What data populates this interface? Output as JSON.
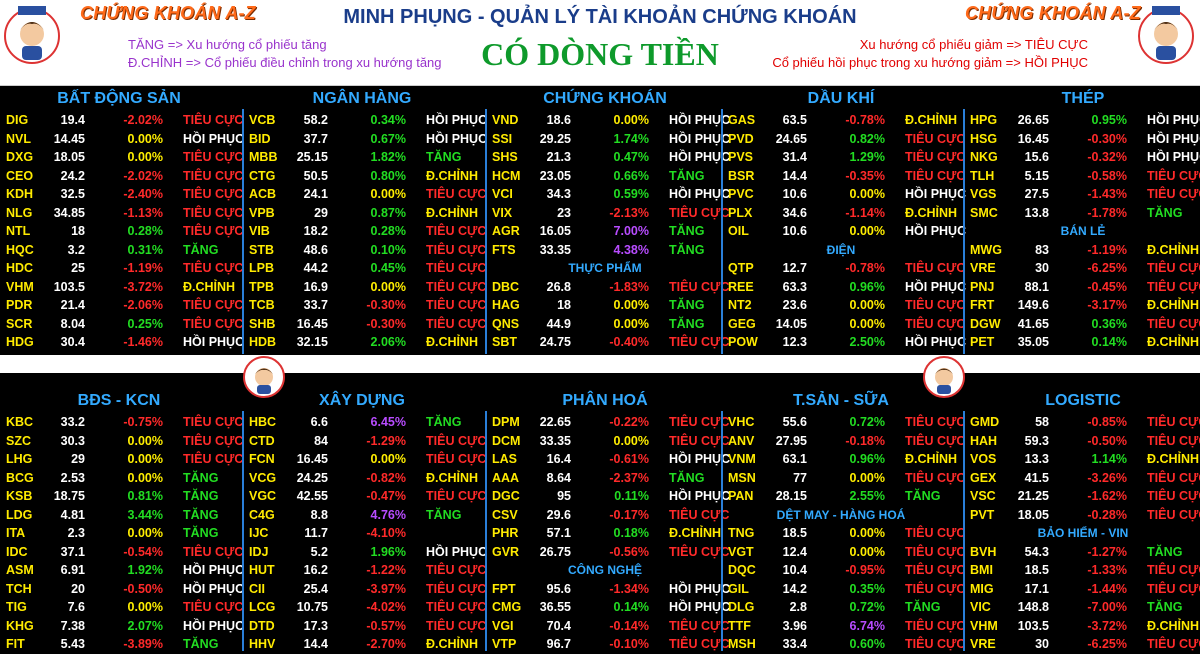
{
  "header": {
    "zone_left": "CHỨNG KHOÁN A-Z",
    "zone_right": "CHỨNG KHOÁN A-Z",
    "main_title": "MINH PHỤNG - QUẢN LÝ TÀI KHOẢN CHỨNG KHOÁN",
    "center_title": "CÓ DÒNG TIỀN",
    "legend_left": [
      "TĂNG => Xu hướng cổ phiếu tăng",
      "Đ.CHỈNH => Cổ phiếu điều chỉnh trong xu hướng tăng"
    ],
    "legend_right": [
      "Xu hướng cổ phiếu giảm => TIÊU CỰC",
      "Cổ phiếu hồi phục trong xu hướng giảm => HỒI PHỤC"
    ],
    "logo_text": "ZONE A-Z"
  },
  "colors": {
    "title_blue": "#1a3d8a",
    "center_green": "#0e9a2b",
    "section_blue": "#33aaff",
    "ticker_yellow": "#ffeb00",
    "up_green": "#22dd22",
    "down_red": "#ff2a2a",
    "purple": "#b84cff",
    "zone_orange": "#ff6a1a"
  },
  "sections": [
    {
      "title": "BẤT ĐỘNG SẢN",
      "rows": [
        [
          "DIG",
          "19.4",
          "-2.02%",
          "TIÊU CỰC"
        ],
        [
          "NVL",
          "14.45",
          "0.00%",
          "HỒI PHỤC"
        ],
        [
          "DXG",
          "18.05",
          "0.00%",
          "TIÊU CỰC"
        ],
        [
          "CEO",
          "24.2",
          "-2.02%",
          "TIÊU CỰC"
        ],
        [
          "KDH",
          "32.5",
          "-2.40%",
          "TIÊU CỰC"
        ],
        [
          "NLG",
          "34.85",
          "-1.13%",
          "TIÊU CỰC"
        ],
        [
          "NTL",
          "18",
          "0.28%",
          "TIÊU CỰC"
        ],
        [
          "HQC",
          "3.2",
          "0.31%",
          "TĂNG"
        ],
        [
          "HDC",
          "25",
          "-1.19%",
          "TIÊU CỰC"
        ],
        [
          "VHM",
          "103.5",
          "-3.72%",
          "Đ.CHỈNH"
        ],
        [
          "PDR",
          "21.4",
          "-2.06%",
          "TIÊU CỰC"
        ],
        [
          "SCR",
          "8.04",
          "0.25%",
          "TIÊU CỰC"
        ],
        [
          "HDG",
          "30.4",
          "-1.46%",
          "HỒI PHỤC"
        ]
      ]
    },
    {
      "title": "NGÂN HÀNG",
      "rows": [
        [
          "VCB",
          "58.2",
          "0.34%",
          "HỒI PHỤC"
        ],
        [
          "BID",
          "37.7",
          "0.67%",
          "HỒI PHỤC"
        ],
        [
          "MBB",
          "25.15",
          "1.82%",
          "TĂNG"
        ],
        [
          "CTG",
          "50.5",
          "0.80%",
          "Đ.CHỈNH"
        ],
        [
          "ACB",
          "24.1",
          "0.00%",
          "TIÊU CỰC"
        ],
        [
          "VPB",
          "29",
          "0.87%",
          "Đ.CHỈNH"
        ],
        [
          "VIB",
          "18.2",
          "0.28%",
          "TIÊU CỰC"
        ],
        [
          "STB",
          "48.6",
          "0.10%",
          "TIÊU CỰC"
        ],
        [
          "LPB",
          "44.2",
          "0.45%",
          "TIÊU CỰC"
        ],
        [
          "TPB",
          "16.9",
          "0.00%",
          "TIÊU CỰC"
        ],
        [
          "TCB",
          "33.7",
          "-0.30%",
          "TIÊU CỰC"
        ],
        [
          "SHB",
          "16.45",
          "-0.30%",
          "TIÊU CỰC"
        ],
        [
          "HDB",
          "32.15",
          "2.06%",
          "Đ.CHỈNH"
        ]
      ]
    },
    {
      "title": "CHỨNG KHOÁN",
      "rows": [
        [
          "VND",
          "18.6",
          "0.00%",
          "HỒI PHỤC"
        ],
        [
          "SSI",
          "29.25",
          "1.74%",
          "HỒI PHỤC"
        ],
        [
          "SHS",
          "21.3",
          "0.47%",
          "HỒI PHỤC"
        ],
        [
          "HCM",
          "23.05",
          "0.66%",
          "TĂNG"
        ],
        [
          "VCI",
          "34.3",
          "0.59%",
          "HỒI PHỤC"
        ],
        [
          "VIX",
          "23",
          "-2.13%",
          "TIÊU CỰC"
        ],
        [
          "AGR",
          "16.05",
          "7.00%",
          "TĂNG"
        ],
        [
          "FTS",
          "33.35",
          "4.38%",
          "TĂNG"
        ]
      ],
      "sub": {
        "title": "THỰC PHẨM",
        "rows": [
          [
            "DBC",
            "26.8",
            "-1.83%",
            "TIÊU CỰC"
          ],
          [
            "HAG",
            "18",
            "0.00%",
            "TĂNG"
          ],
          [
            "QNS",
            "44.9",
            "0.00%",
            "TĂNG"
          ],
          [
            "SBT",
            "24.75",
            "-0.40%",
            "TIÊU CỰC"
          ]
        ]
      }
    },
    {
      "title": "DẦU KHÍ",
      "rows": [
        [
          "GAS",
          "63.5",
          "-0.78%",
          "Đ.CHỈNH"
        ],
        [
          "PVD",
          "24.65",
          "0.82%",
          "TIÊU CỰC"
        ],
        [
          "PVS",
          "31.4",
          "1.29%",
          "TIÊU CỰC"
        ],
        [
          "BSR",
          "14.4",
          "-0.35%",
          "TIÊU CỰC"
        ],
        [
          "PVC",
          "10.6",
          "0.00%",
          "HỒI PHỤC"
        ],
        [
          "PLX",
          "34.6",
          "-1.14%",
          "Đ.CHỈNH"
        ],
        [
          "OIL",
          "10.6",
          "0.00%",
          "HỒI PHỤC"
        ]
      ],
      "sub": {
        "title": "ĐIỆN",
        "rows": [
          [
            "QTP",
            "12.7",
            "-0.78%",
            "TIÊU CỰC"
          ],
          [
            "REE",
            "63.3",
            "0.96%",
            "HỒI PHỤC"
          ],
          [
            "NT2",
            "23.6",
            "0.00%",
            "TIÊU CỰC"
          ],
          [
            "GEG",
            "14.05",
            "0.00%",
            "TIÊU CỰC"
          ],
          [
            "POW",
            "12.3",
            "2.50%",
            "HỒI PHỤC"
          ]
        ]
      }
    },
    {
      "title": "THÉP",
      "rows": [
        [
          "HPG",
          "26.65",
          "0.95%",
          "HỒI PHỤC"
        ],
        [
          "HSG",
          "16.45",
          "-0.30%",
          "HỒI PHỤC"
        ],
        [
          "NKG",
          "15.6",
          "-0.32%",
          "HỒI PHỤC"
        ],
        [
          "TLH",
          "5.15",
          "-0.58%",
          "TIÊU CỰC"
        ],
        [
          "VGS",
          "27.5",
          "-1.43%",
          "TIÊU CỰC"
        ],
        [
          "SMC",
          "13.8",
          "-1.78%",
          "TĂNG"
        ]
      ],
      "sub": {
        "title": "BÁN LẺ",
        "rows": [
          [
            "MWG",
            "83",
            "-1.19%",
            "Đ.CHỈNH"
          ],
          [
            "VRE",
            "30",
            "-6.25%",
            "TIÊU CỰC"
          ],
          [
            "PNJ",
            "88.1",
            "-0.45%",
            "TIÊU CỰC"
          ],
          [
            "FRT",
            "149.6",
            "-3.17%",
            "Đ.CHỈNH"
          ],
          [
            "DGW",
            "41.65",
            "0.36%",
            "TIÊU CỰC"
          ],
          [
            "PET",
            "35.05",
            "0.14%",
            "Đ.CHỈNH"
          ]
        ]
      }
    },
    {
      "title": "BĐS - KCN",
      "rows": [
        [
          "KBC",
          "33.2",
          "-0.75%",
          "TIÊU CỰC"
        ],
        [
          "SZC",
          "30.3",
          "0.00%",
          "TIÊU CỰC"
        ],
        [
          "LHG",
          "29",
          "0.00%",
          "TIÊU CỰC"
        ],
        [
          "BCG",
          "2.53",
          "0.00%",
          "TĂNG"
        ],
        [
          "KSB",
          "18.75",
          "0.81%",
          "TĂNG"
        ],
        [
          "LDG",
          "4.81",
          "3.44%",
          "TĂNG"
        ],
        [
          "ITA",
          "2.3",
          "0.00%",
          "TĂNG"
        ],
        [
          "IDC",
          "37.1",
          "-0.54%",
          "TIÊU CỰC"
        ],
        [
          "ASM",
          "6.91",
          "1.92%",
          "HỒI PHỤC"
        ],
        [
          "TCH",
          "20",
          "-0.50%",
          "HỒI PHỤC"
        ],
        [
          "TIG",
          "7.6",
          "0.00%",
          "TIÊU CỰC"
        ],
        [
          "KHG",
          "7.38",
          "2.07%",
          "HỒI PHỤC"
        ],
        [
          "FIT",
          "5.43",
          "-3.89%",
          "TĂNG"
        ]
      ]
    },
    {
      "title": "XÂY DỰNG",
      "rows": [
        [
          "HBC",
          "6.6",
          "6.45%",
          "TĂNG"
        ],
        [
          "CTD",
          "84",
          "-1.29%",
          "TIÊU CỰC"
        ],
        [
          "FCN",
          "16.45",
          "0.00%",
          "TIÊU CỰC"
        ],
        [
          "VCG",
          "24.25",
          "-0.82%",
          "Đ.CHỈNH"
        ],
        [
          "VGC",
          "42.55",
          "-0.47%",
          "TIÊU CỰC"
        ],
        [
          "C4G",
          "8.8",
          "4.76%",
          "TĂNG"
        ],
        [
          "IJC",
          "11.7",
          "-4.10%",
          ""
        ],
        [
          "IDJ",
          "5.2",
          "1.96%",
          "HỒI PHỤC"
        ],
        [
          "HUT",
          "16.2",
          "-1.22%",
          "TIÊU CỰC"
        ],
        [
          "CII",
          "25.4",
          "-3.97%",
          "TIÊU CỰC"
        ],
        [
          "LCG",
          "10.75",
          "-4.02%",
          "TIÊU CỰC"
        ],
        [
          "DTD",
          "17.3",
          "-0.57%",
          "TIÊU CỰC"
        ],
        [
          "HHV",
          "14.4",
          "-2.70%",
          "Đ.CHỈNH"
        ]
      ]
    },
    {
      "title": "PHÂN HOÁ",
      "rows": [
        [
          "DPM",
          "22.65",
          "-0.22%",
          "TIÊU CỰC"
        ],
        [
          "DCM",
          "33.35",
          "0.00%",
          "TIÊU CỰC"
        ],
        [
          "LAS",
          "16.4",
          "-0.61%",
          "HỒI PHỤC"
        ],
        [
          "AAA",
          "8.64",
          "-2.37%",
          "TĂNG"
        ],
        [
          "DGC",
          "95",
          "0.11%",
          "HỒI PHỤC"
        ],
        [
          "CSV",
          "29.6",
          "-0.17%",
          "TIÊU CỰC"
        ],
        [
          "PHR",
          "57.1",
          "0.18%",
          "Đ.CHỈNH"
        ],
        [
          "GVR",
          "26.75",
          "-0.56%",
          "TIÊU CỰC"
        ]
      ],
      "sub": {
        "title": "CÔNG NGHỆ",
        "rows": [
          [
            "FPT",
            "95.6",
            "-1.34%",
            "HỒI PHỤC"
          ],
          [
            "CMG",
            "36.55",
            "0.14%",
            "HỒI PHỤC"
          ],
          [
            "VGI",
            "70.4",
            "-0.14%",
            "TIÊU CỰC"
          ],
          [
            "VTP",
            "96.7",
            "-0.10%",
            "TIÊU CỰC"
          ]
        ]
      }
    },
    {
      "title": "T.SẢN - SỮA",
      "rows": [
        [
          "VHC",
          "55.6",
          "0.72%",
          "TIÊU CỰC"
        ],
        [
          "ANV",
          "27.95",
          "-0.18%",
          "TIÊU CỰC"
        ],
        [
          "VNM",
          "63.1",
          "0.96%",
          "Đ.CHỈNH"
        ],
        [
          "MSN",
          "77",
          "0.00%",
          "TIÊU CỰC"
        ],
        [
          "PAN",
          "28.15",
          "2.55%",
          "TĂNG"
        ]
      ],
      "sub": {
        "title": "DỆT MAY - HÀNG HOÁ",
        "rows": [
          [
            "TNG",
            "18.5",
            "0.00%",
            "TIÊU CỰC"
          ],
          [
            "VGT",
            "12.4",
            "0.00%",
            "TIÊU CỰC"
          ],
          [
            "DQC",
            "10.4",
            "-0.95%",
            "TIÊU CỰC"
          ],
          [
            "GIL",
            "14.2",
            "0.35%",
            "TIÊU CỰC"
          ],
          [
            "DLG",
            "2.8",
            "0.72%",
            "TĂNG"
          ],
          [
            "TTF",
            "3.96",
            "6.74%",
            "TIÊU CỰC"
          ],
          [
            "MSH",
            "33.4",
            "0.60%",
            "TIÊU CỰC"
          ]
        ]
      }
    },
    {
      "title": "LOGISTIC",
      "rows": [
        [
          "GMD",
          "58",
          "-0.85%",
          "TIÊU CỰC"
        ],
        [
          "HAH",
          "59.3",
          "-0.50%",
          "TIÊU CỰC"
        ],
        [
          "VOS",
          "13.3",
          "1.14%",
          "Đ.CHỈNH"
        ],
        [
          "GEX",
          "41.5",
          "-3.26%",
          "TIÊU CỰC"
        ],
        [
          "VSC",
          "21.25",
          "-1.62%",
          "TIÊU CỰC"
        ],
        [
          "PVT",
          "18.05",
          "-0.28%",
          "TIÊU CỰC"
        ]
      ],
      "sub": {
        "title": "BẢO HIỂM - VIN",
        "rows": [
          [
            "BVH",
            "54.3",
            "-1.27%",
            "TĂNG"
          ],
          [
            "BMI",
            "18.5",
            "-1.33%",
            "TIÊU CỰC"
          ],
          [
            "MIG",
            "17.1",
            "-1.44%",
            "TIÊU CỰC"
          ],
          [
            "VIC",
            "148.8",
            "-7.00%",
            "TĂNG"
          ],
          [
            "VHM",
            "103.5",
            "-3.72%",
            "Đ.CHỈNH"
          ],
          [
            "VRE",
            "30",
            "-6.25%",
            "TIÊU CỰC"
          ]
        ]
      }
    }
  ]
}
